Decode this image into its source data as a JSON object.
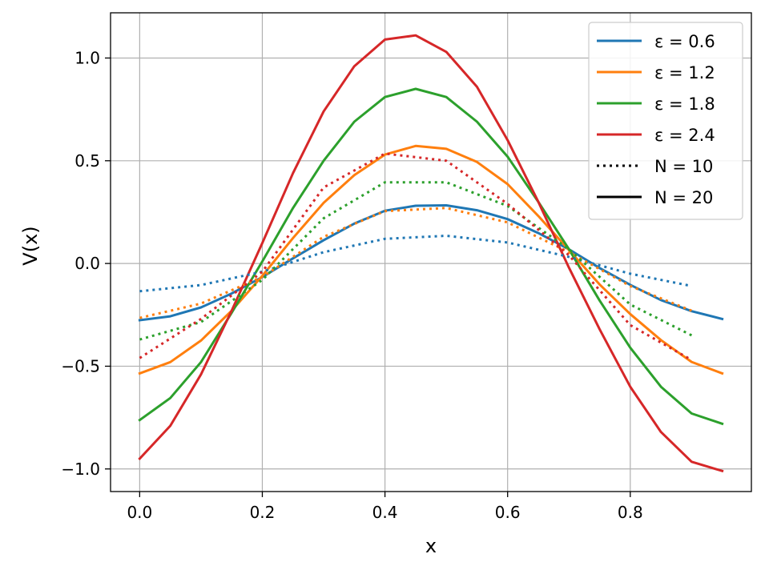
{
  "chart_data": {
    "type": "line",
    "xlabel": "x",
    "ylabel": "V(x)",
    "xlim": [
      -0.0475,
      0.9975
    ],
    "ylim": [
      -1.11,
      1.22
    ],
    "xticks": [
      0.0,
      0.2,
      0.4,
      0.6,
      0.8
    ],
    "xtick_labels": [
      "0.0",
      "0.2",
      "0.4",
      "0.6",
      "0.8"
    ],
    "yticks": [
      -1.0,
      -0.5,
      0.0,
      0.5,
      1.0
    ],
    "ytick_labels": [
      "−1.0",
      "−0.5",
      "0.0",
      "0.5",
      "1.0"
    ],
    "grid": true,
    "legend_position": "top-right",
    "legend": [
      {
        "label": "ε = 0.6",
        "color": "#1f77b4",
        "style": "solid"
      },
      {
        "label": "ε = 1.2",
        "color": "#ff7f0e",
        "style": "solid"
      },
      {
        "label": "ε = 1.8",
        "color": "#2ca02c",
        "style": "solid"
      },
      {
        "label": "ε = 2.4",
        "color": "#d62728",
        "style": "solid"
      },
      {
        "label": "N = 10",
        "color": "#000000",
        "style": "dotted"
      },
      {
        "label": "N = 20",
        "color": "#000000",
        "style": "solid"
      }
    ],
    "series": [
      {
        "epsilon": "0.6",
        "N": "20",
        "color": "#1f77b4",
        "style": "solid",
        "x": [
          0.0,
          0.05,
          0.1,
          0.15,
          0.2,
          0.25,
          0.3,
          0.35,
          0.4,
          0.45,
          0.5,
          0.55,
          0.6,
          0.65,
          0.7,
          0.75,
          0.8,
          0.85,
          0.9,
          0.95
        ],
        "y": [
          -0.276,
          -0.257,
          -0.214,
          -0.146,
          -0.066,
          0.025,
          0.113,
          0.194,
          0.257,
          0.281,
          0.283,
          0.259,
          0.216,
          0.148,
          0.069,
          -0.022,
          -0.104,
          -0.178,
          -0.232,
          -0.27
        ]
      },
      {
        "epsilon": "1.2",
        "N": "20",
        "color": "#ff7f0e",
        "style": "solid",
        "x": [
          0.0,
          0.05,
          0.1,
          0.15,
          0.2,
          0.25,
          0.3,
          0.35,
          0.4,
          0.45,
          0.5,
          0.55,
          0.6,
          0.65,
          0.7,
          0.75,
          0.8,
          0.85,
          0.9,
          0.95
        ],
        "y": [
          -0.535,
          -0.48,
          -0.375,
          -0.23,
          -0.06,
          0.124,
          0.295,
          0.43,
          0.53,
          0.572,
          0.558,
          0.494,
          0.386,
          0.231,
          0.066,
          -0.102,
          -0.246,
          -0.373,
          -0.479,
          -0.535
        ]
      },
      {
        "epsilon": "1.8",
        "N": "20",
        "color": "#2ca02c",
        "style": "solid",
        "x": [
          0.0,
          0.05,
          0.1,
          0.15,
          0.2,
          0.25,
          0.3,
          0.35,
          0.4,
          0.45,
          0.5,
          0.55,
          0.6,
          0.65,
          0.7,
          0.75,
          0.8,
          0.85,
          0.9,
          0.95
        ],
        "y": [
          -0.762,
          -0.655,
          -0.48,
          -0.24,
          0.01,
          0.27,
          0.5,
          0.69,
          0.81,
          0.85,
          0.81,
          0.69,
          0.52,
          0.3,
          0.07,
          -0.18,
          -0.41,
          -0.6,
          -0.73,
          -0.78
        ]
      },
      {
        "epsilon": "2.4",
        "N": "20",
        "color": "#d62728",
        "style": "solid",
        "x": [
          0.0,
          0.05,
          0.1,
          0.15,
          0.2,
          0.25,
          0.3,
          0.35,
          0.4,
          0.45,
          0.5,
          0.55,
          0.6,
          0.65,
          0.7,
          0.75,
          0.8,
          0.85,
          0.9,
          0.95
        ],
        "y": [
          -0.95,
          -0.79,
          -0.54,
          -0.23,
          0.1,
          0.44,
          0.74,
          0.96,
          1.09,
          1.11,
          1.03,
          0.86,
          0.6,
          0.3,
          -0.02,
          -0.32,
          -0.6,
          -0.82,
          -0.965,
          -1.01
        ]
      },
      {
        "epsilon": "0.6",
        "N": "10",
        "color": "#1f77b4",
        "style": "dotted",
        "x": [
          0.0,
          0.1,
          0.2,
          0.3,
          0.4,
          0.5,
          0.6,
          0.7,
          0.8,
          0.9
        ],
        "y": [
          -0.135,
          -0.105,
          -0.04,
          0.055,
          0.12,
          0.135,
          0.102,
          0.032,
          -0.05,
          -0.11
        ]
      },
      {
        "epsilon": "1.2",
        "N": "10",
        "color": "#ff7f0e",
        "style": "dotted",
        "x": [
          0.0,
          0.1,
          0.2,
          0.3,
          0.4,
          0.5,
          0.6,
          0.7,
          0.8,
          0.9
        ],
        "y": [
          -0.265,
          -0.195,
          -0.065,
          0.13,
          0.255,
          0.27,
          0.2,
          0.055,
          -0.11,
          -0.23
        ]
      },
      {
        "epsilon": "1.8",
        "N": "10",
        "color": "#2ca02c",
        "style": "dotted",
        "x": [
          0.0,
          0.1,
          0.2,
          0.3,
          0.4,
          0.5,
          0.6,
          0.7,
          0.8,
          0.9
        ],
        "y": [
          -0.37,
          -0.285,
          -0.08,
          0.22,
          0.395,
          0.395,
          0.28,
          0.07,
          -0.2,
          -0.35
        ]
      },
      {
        "epsilon": "2.4",
        "N": "10",
        "color": "#d62728",
        "style": "dotted",
        "x": [
          0.0,
          0.1,
          0.2,
          0.3,
          0.4,
          0.5,
          0.6,
          0.7,
          0.8,
          0.9
        ],
        "y": [
          -0.46,
          -0.27,
          -0.04,
          0.37,
          0.535,
          0.5,
          0.29,
          0.04,
          -0.3,
          -0.47
        ]
      }
    ]
  }
}
